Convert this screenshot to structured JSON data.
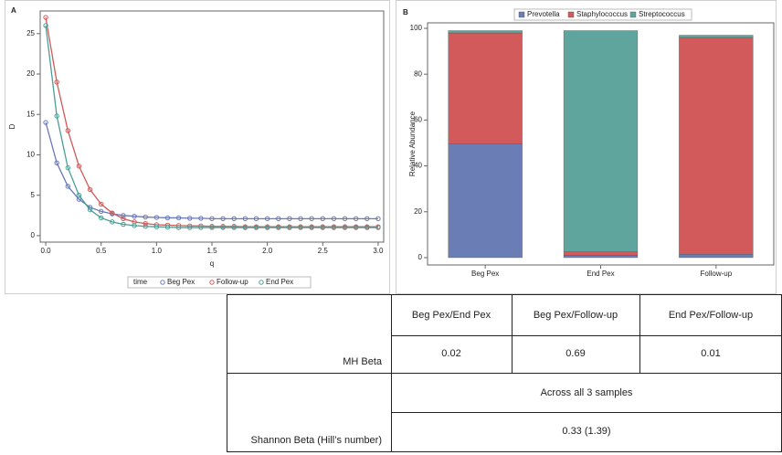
{
  "chart_data": [
    {
      "type": "line",
      "panel_label": "A",
      "x_label": "q",
      "y_label": "D",
      "x": [
        0,
        0.1,
        0.2,
        0.3,
        0.4,
        0.5,
        0.6,
        0.7,
        0.8,
        0.9,
        1.0,
        1.1,
        1.2,
        1.3,
        1.4,
        1.5,
        1.6,
        1.7,
        1.8,
        1.9,
        2.0,
        2.1,
        2.2,
        2.3,
        2.4,
        2.5,
        2.6,
        2.7,
        2.8,
        2.9,
        3.0
      ],
      "series": [
        {
          "name": "Beg Pex",
          "color": "#6a79b6",
          "values": [
            14,
            9,
            6.1,
            4.5,
            3.5,
            3.0,
            2.7,
            2.5,
            2.4,
            2.3,
            2.25,
            2.2,
            2.2,
            2.15,
            2.15,
            2.1,
            2.1,
            2.1,
            2.1,
            2.1,
            2.1,
            2.1,
            2.1,
            2.1,
            2.1,
            2.1,
            2.1,
            2.1,
            2.1,
            2.1,
            2.1
          ]
        },
        {
          "name": "Follow-up",
          "color": "#d05a5a",
          "values": [
            27,
            19,
            13,
            8.6,
            5.7,
            3.9,
            2.8,
            2.1,
            1.7,
            1.5,
            1.35,
            1.3,
            1.25,
            1.2,
            1.2,
            1.15,
            1.15,
            1.15,
            1.1,
            1.1,
            1.1,
            1.1,
            1.1,
            1.1,
            1.1,
            1.1,
            1.1,
            1.1,
            1.1,
            1.1,
            1.1
          ]
        },
        {
          "name": "End Pex",
          "color": "#4a9e96",
          "values": [
            26,
            14.8,
            8.4,
            5,
            3.2,
            2.2,
            1.7,
            1.4,
            1.25,
            1.15,
            1.1,
            1.05,
            1.0,
            1.0,
            1.0,
            1.0,
            1.0,
            1.0,
            1.0,
            1.0,
            1.0,
            1.0,
            1.0,
            1.0,
            1.0,
            1.0,
            1.0,
            1.0,
            1.0,
            1.0,
            1.0
          ]
        }
      ],
      "legend_title": "time",
      "legend": "bottom",
      "xlim": [
        -0.05,
        3.05
      ],
      "xticks": [
        {
          "value": 0,
          "label": "0.0"
        },
        0.5,
        {
          "value": 1,
          "label": "1.0"
        },
        1.5,
        {
          "value": 2,
          "label": "2.0"
        },
        2.5,
        {
          "value": 3,
          "label": "3.0"
        }
      ],
      "ylim": [
        -0.8,
        27.8
      ],
      "yticks": [
        0,
        5,
        10,
        15,
        20,
        25
      ]
    },
    {
      "type": "bar",
      "panel_label": "B",
      "stacked": true,
      "y_label": "Relative Abundance",
      "categories": [
        "Beg Pex",
        "End Pex",
        "Follow-up"
      ],
      "series": [
        {
          "name": "Prevotella",
          "color": "#6b7db5",
          "values": [
            49.5,
            1,
            1.5
          ]
        },
        {
          "name": "Staphylococcus",
          "color": "#d25a5a",
          "values": [
            48.5,
            1.5,
            94.5
          ]
        },
        {
          "name": "Streptococcus",
          "color": "#5fa59d",
          "values": [
            1,
            96.5,
            1
          ]
        }
      ],
      "legend": "top",
      "ylim": [
        -3.2,
        102.4
      ],
      "yticks": [
        0,
        20,
        40,
        60,
        80,
        100
      ]
    }
  ],
  "table": {
    "columns": [
      "Beg Pex/End Pex",
      "Beg Pex/Follow-up",
      "End Pex/Follow-up"
    ],
    "rows": [
      {
        "label": "MH Beta",
        "values": [
          "0.02",
          "0.69",
          "0.01"
        ]
      },
      {
        "label": "Shannon Beta (Hill’s number)",
        "note": "Across all 3 samples",
        "value": "0.33 (1.39)"
      }
    ]
  }
}
